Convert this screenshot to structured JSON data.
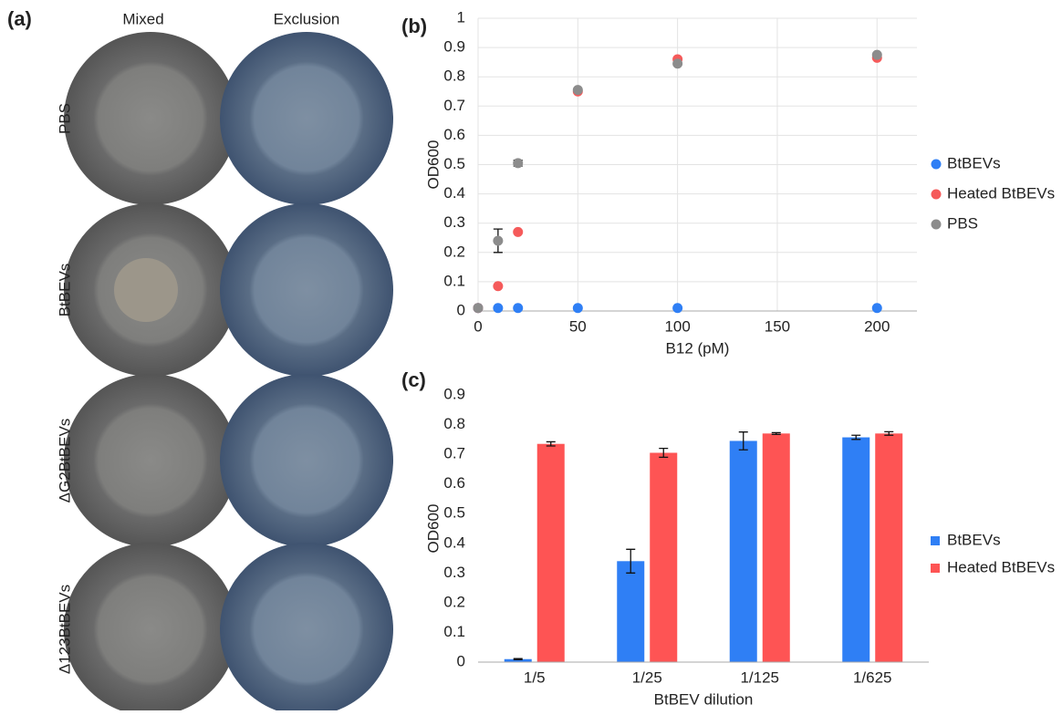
{
  "panel_a": {
    "label": "(a)",
    "columns": [
      "Mixed",
      "Exclusion"
    ],
    "rows": [
      "PBS",
      "BtBEVs",
      "ΔG2BtBEVs",
      "Δ123BtBEVs"
    ]
  },
  "chart_data": [
    {
      "type": "scatter",
      "panel_label": "(b)",
      "x_label": "B12 (pM)",
      "y_label": "OD600",
      "x": [
        0,
        10,
        20,
        50,
        100,
        200
      ],
      "series": [
        {
          "name": "BtBEVs",
          "color": "#2f7ff5",
          "values": [
            0.01,
            0.01,
            0.01,
            0.01,
            0.01,
            0.01
          ]
        },
        {
          "name": "Heated BtBEVs",
          "color": "#f55a5a",
          "values": [
            0.01,
            0.085,
            0.27,
            0.75,
            0.86,
            0.865
          ]
        },
        {
          "name": "PBS",
          "color": "#8c8c8c",
          "values": [
            0.01,
            0.24,
            0.505,
            0.755,
            0.845,
            0.875
          ],
          "errors": [
            null,
            0.04,
            0.01,
            null,
            null,
            null
          ]
        }
      ],
      "xlim": [
        0,
        220
      ],
      "xticks": [
        0,
        50,
        100,
        150,
        200
      ],
      "ylim": [
        0,
        1
      ],
      "yticks": [
        0,
        0.1,
        0.2,
        0.3,
        0.4,
        0.5,
        0.6,
        0.7,
        0.8,
        0.9,
        1
      ],
      "grid": true,
      "legend": "right"
    },
    {
      "type": "bar",
      "panel_label": "(c)",
      "x_label": "BtBEV dilution",
      "y_label": "OD600",
      "categories": [
        "1/5",
        "1/25",
        "1/125",
        "1/625"
      ],
      "series": [
        {
          "name": "BtBEVs",
          "color": "#2f7ff5",
          "values": [
            0.01,
            0.34,
            0.745,
            0.757
          ],
          "errors": [
            0.002,
            0.04,
            0.03,
            0.007
          ]
        },
        {
          "name": "Heated BtBEVs",
          "color": "#fe5454",
          "values": [
            0.735,
            0.705,
            0.77,
            0.77
          ],
          "errors": [
            0.007,
            0.015,
            0.003,
            0.006
          ]
        }
      ],
      "ylim": [
        0,
        0.9
      ],
      "yticks": [
        0,
        0.1,
        0.2,
        0.3,
        0.4,
        0.5,
        0.6,
        0.7,
        0.8,
        0.9
      ],
      "grid": false,
      "legend": "right"
    }
  ]
}
